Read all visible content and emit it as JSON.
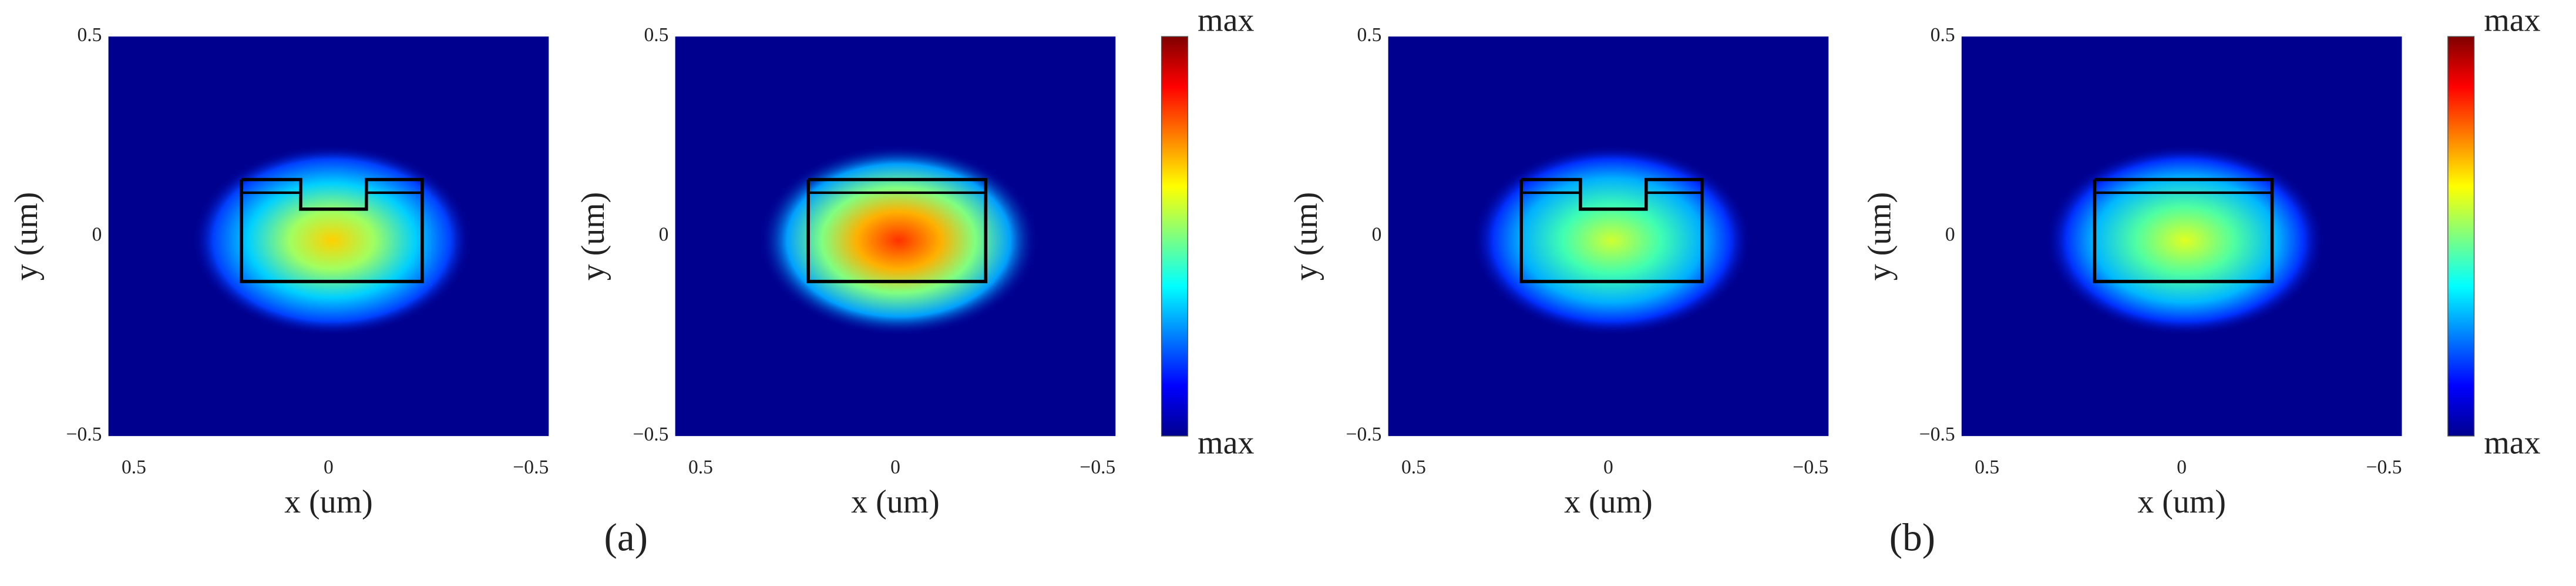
{
  "chart_data": [
    {
      "type": "heatmap",
      "xlabel": "x (um)",
      "ylabel": "y (um)",
      "xlim": [
        0.5,
        -0.5
      ],
      "ylim": [
        -0.5,
        0.5
      ],
      "xticks": [
        0.5,
        0,
        {
          "value": -0.5,
          "label": "−0.5"
        }
      ],
      "yticks": [
        {
          "value": -0.5,
          "label": "−0.5"
        },
        0,
        0.5
      ]
    },
    {
      "type": "heatmap",
      "xlabel": "x (um)",
      "ylabel": "y (um)",
      "xlim": [
        0.5,
        -0.5
      ],
      "ylim": [
        -0.5,
        0.5
      ],
      "xticks": [
        0.5,
        0,
        {
          "value": -0.5,
          "label": "−0.5"
        }
      ],
      "yticks": [
        {
          "value": -0.5,
          "label": "−0.5"
        },
        0,
        0.5
      ],
      "colorbar_labels": [
        "max",
        "max"
      ],
      "panel_label": "(a)"
    },
    {
      "type": "heatmap",
      "xlabel": "x (um)",
      "ylabel": "y (um)",
      "xlim": [
        0.5,
        -0.5
      ],
      "ylim": [
        -0.5,
        0.5
      ],
      "xticks": [
        0.5,
        0,
        {
          "value": -0.5,
          "label": "−0.5"
        }
      ],
      "yticks": [
        {
          "value": -0.5,
          "label": "−0.5"
        },
        0,
        0.5
      ]
    },
    {
      "type": "heatmap",
      "xlabel": "x (um)",
      "ylabel": "y (um)",
      "xlim": [
        0.5,
        -0.5
      ],
      "ylim": [
        -0.5,
        0.5
      ],
      "xticks": [
        0.5,
        0,
        {
          "value": -0.5,
          "label": "−0.5"
        }
      ],
      "yticks": [
        {
          "value": -0.5,
          "label": "−0.5"
        },
        0,
        0.5
      ],
      "colorbar_labels": [
        "max",
        "max"
      ],
      "panel_label": "(b)"
    }
  ]
}
